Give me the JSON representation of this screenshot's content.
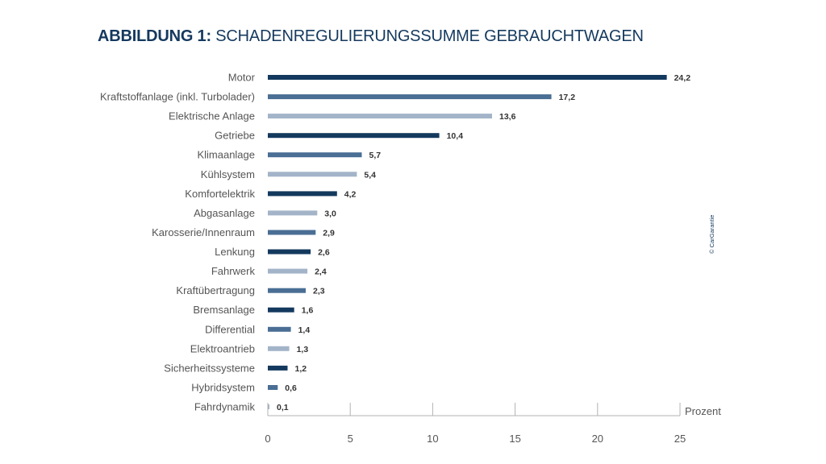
{
  "title": {
    "prefix": "ABBILDUNG 1:",
    "rest": "SCHADENREGULIERUNGSSUMME GEBRAUCHTWAGEN"
  },
  "copyright": "© CarGarantie",
  "colors": {
    "dark": "#14395e",
    "medium": "#4a6e94",
    "light": "#a3b4c9",
    "axis": "#b3b3b3",
    "text": "#555555"
  },
  "chart_data": {
    "type": "bar",
    "orientation": "horizontal",
    "title": "ABBILDUNG 1: SCHADENREGULIERUNGSSUMME GEBRAUCHTWAGEN",
    "xlabel": "Prozent",
    "ylabel": "",
    "xlim": [
      0,
      25
    ],
    "xticks": [
      0,
      5,
      10,
      15,
      20,
      25
    ],
    "grid": false,
    "categories": [
      "Motor",
      "Kraftstoffanlage (inkl. Turbolader)",
      "Elektrische Anlage",
      "Getriebe",
      "Klimaanlage",
      "Kühlsystem",
      "Komfortelektrik",
      "Abgasanlage",
      "Karosserie/Innenraum",
      "Lenkung",
      "Fahrwerk",
      "Kraftübertragung",
      "Bremsanlage",
      "Differential",
      "Elektroantrieb",
      "Sicherheitssysteme",
      "Hybridsystem",
      "Fahrdynamik"
    ],
    "values": [
      24.2,
      17.2,
      13.6,
      10.4,
      5.7,
      5.4,
      4.2,
      3.0,
      2.9,
      2.6,
      2.4,
      2.3,
      1.6,
      1.4,
      1.3,
      1.2,
      0.6,
      0.1
    ],
    "value_labels": [
      "24,2",
      "17,2",
      "13,6",
      "10,4",
      "5,7",
      "5,4",
      "4,2",
      "3,0",
      "2,9",
      "2,6",
      "2,4",
      "2,3",
      "1,6",
      "1,4",
      "1,3",
      "1,2",
      "0,6",
      "0,1"
    ],
    "bar_shades": [
      "dark",
      "medium",
      "light",
      "dark",
      "medium",
      "light",
      "dark",
      "light",
      "medium",
      "dark",
      "light",
      "medium",
      "dark",
      "medium",
      "light",
      "dark",
      "medium",
      "light"
    ]
  }
}
